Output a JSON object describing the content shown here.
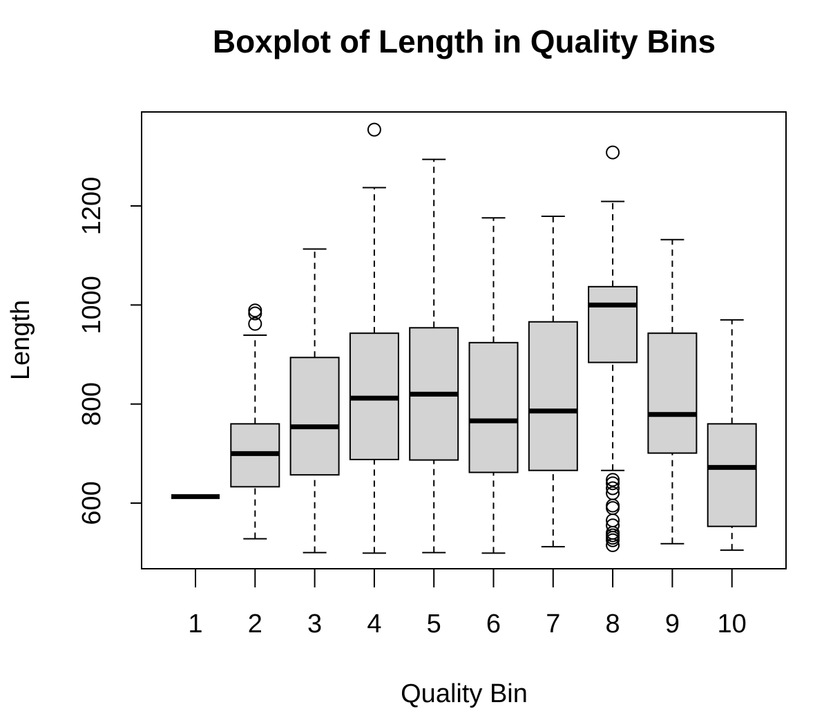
{
  "chart_data": {
    "type": "boxplot",
    "title": "Boxplot of Length in Quality Bins",
    "xlabel": "Quality Bin",
    "ylabel": "Length",
    "ylim": [
      495,
      1390
    ],
    "yticks": [
      600,
      800,
      1000,
      1200
    ],
    "categories": [
      "1",
      "2",
      "3",
      "4",
      "5",
      "6",
      "7",
      "8",
      "9",
      "10"
    ],
    "box_fill": "#d3d3d3",
    "boxes": [
      {
        "category": "1",
        "whisker_low": 613,
        "q1": 613,
        "median": 613,
        "q3": 613,
        "whisker_high": 613,
        "outliers": []
      },
      {
        "category": "2",
        "whisker_low": 528,
        "q1": 633,
        "median": 700,
        "q3": 760,
        "whisker_high": 939,
        "outliers": [
          962,
          983,
          989
        ]
      },
      {
        "category": "3",
        "whisker_low": 500,
        "q1": 657,
        "median": 754,
        "q3": 894,
        "whisker_high": 1113,
        "outliers": []
      },
      {
        "category": "4",
        "whisker_low": 499,
        "q1": 688,
        "median": 812,
        "q3": 943,
        "whisker_high": 1237,
        "outliers": [
          1354
        ]
      },
      {
        "category": "5",
        "whisker_low": 500,
        "q1": 687,
        "median": 820,
        "q3": 954,
        "whisker_high": 1294,
        "outliers": []
      },
      {
        "category": "6",
        "whisker_low": 499,
        "q1": 662,
        "median": 766,
        "q3": 924,
        "whisker_high": 1176,
        "outliers": []
      },
      {
        "category": "7",
        "whisker_low": 512,
        "q1": 666,
        "median": 786,
        "q3": 966,
        "whisker_high": 1179,
        "outliers": []
      },
      {
        "category": "8",
        "whisker_low": 666,
        "q1": 884,
        "median": 1000,
        "q3": 1037,
        "whisker_high": 1209,
        "outliers": [
          1308,
          647,
          640,
          630,
          620,
          595,
          590,
          565,
          555,
          540,
          535,
          530,
          525,
          515
        ]
      },
      {
        "category": "9",
        "whisker_low": 518,
        "q1": 701,
        "median": 779,
        "q3": 943,
        "whisker_high": 1132,
        "outliers": []
      },
      {
        "category": "10",
        "whisker_low": 505,
        "q1": 553,
        "median": 672,
        "q3": 760,
        "whisker_high": 970,
        "outliers": []
      }
    ]
  }
}
